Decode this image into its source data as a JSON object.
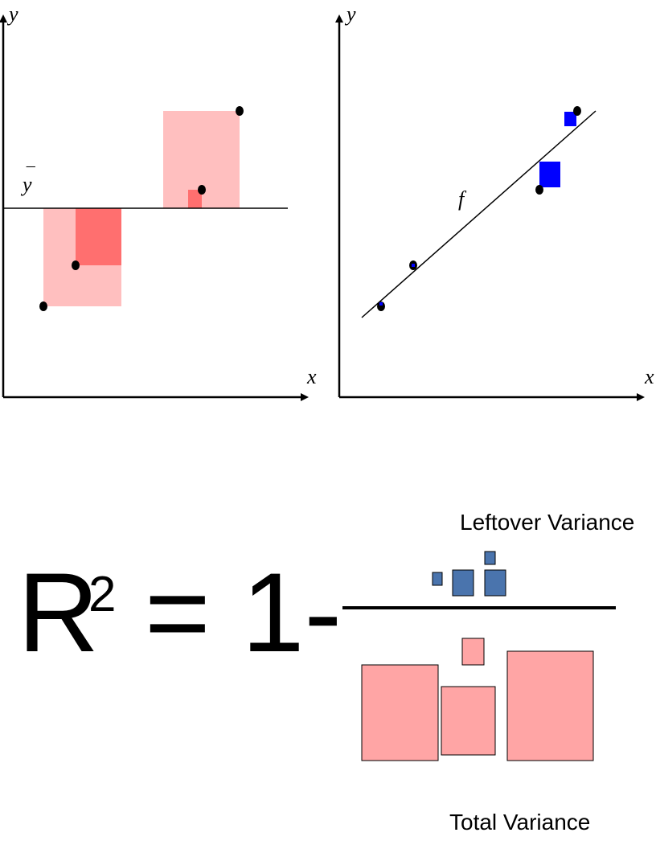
{
  "left_panel": {
    "y_axis_label": "y",
    "x_axis_label": "x",
    "mean_label": "y",
    "mean_bar": "¯"
  },
  "right_panel": {
    "y_axis_label": "y",
    "x_axis_label": "x",
    "fit_label": "f"
  },
  "formula": {
    "lhs_base": "R",
    "lhs_exponent": "2",
    "equals_one_minus": "= 1-",
    "numerator_label": "Leftover Variance",
    "denominator_label": "Total Variance"
  },
  "colors": {
    "total_square": "#ffbfbf",
    "total_square_dark": "#ff6f6f",
    "residual_square": "#0000ff",
    "numerator_square": "#4a74ad",
    "denominator_square": "#ffa5a5",
    "axis": "#000000"
  }
}
